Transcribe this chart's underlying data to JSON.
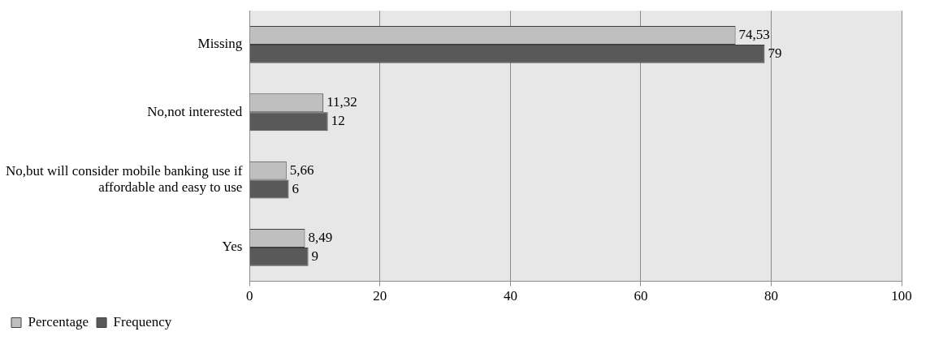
{
  "chart_data": {
    "type": "bar",
    "orientation": "horizontal",
    "categories": [
      "Missing",
      "No,not interested",
      "No,but will consider mobile banking use if affordable and easy to use",
      "Yes"
    ],
    "series": [
      {
        "name": "Percentage",
        "color": "#bfbfbf",
        "values": [
          74.53,
          11.32,
          5.66,
          8.49
        ],
        "value_labels": [
          "74,53",
          "11,32",
          "5,66",
          "8,49"
        ]
      },
      {
        "name": "Frequency",
        "color": "#595959",
        "values": [
          79,
          12,
          6,
          9
        ],
        "value_labels": [
          "79",
          "12",
          "6",
          "9"
        ]
      }
    ],
    "xlim": [
      0,
      100
    ],
    "xticks": [
      0,
      20,
      40,
      60,
      80,
      100
    ],
    "grid": "x",
    "legend": "bottom left"
  }
}
